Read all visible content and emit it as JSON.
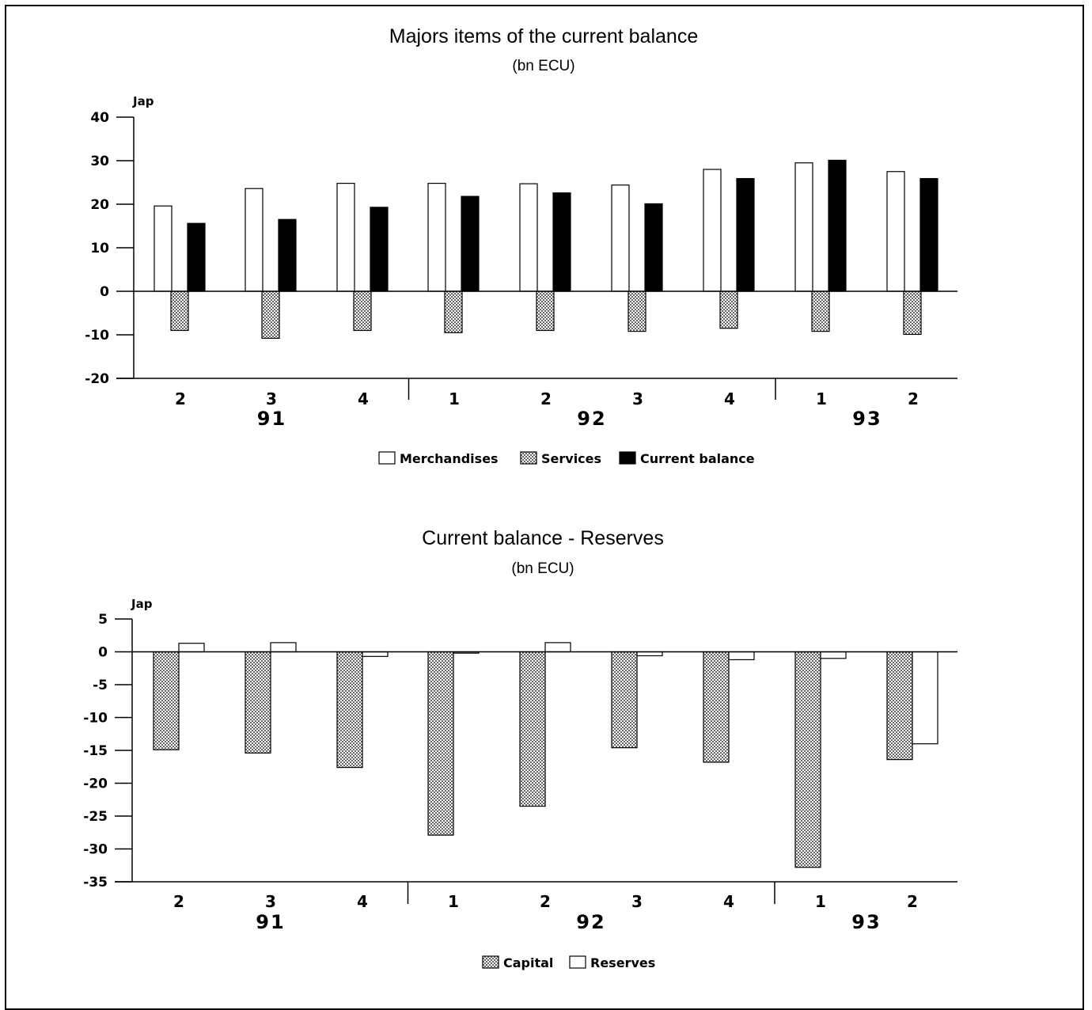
{
  "colors": {
    "ink": "#000000",
    "background": "#ffffff",
    "hatch": "#888888"
  },
  "chart_data": [
    {
      "type": "bar",
      "title": "Majors items of the current balance",
      "subtitle": "(bn ECU)",
      "y_axis_title": "Jap",
      "ylim": [
        -20,
        40
      ],
      "yticks": [
        "40",
        "30",
        "20",
        "10",
        "0",
        "-10",
        "-20"
      ],
      "ytick_values": [
        40,
        30,
        20,
        10,
        0,
        -10,
        -20
      ],
      "categories": [
        "2",
        "3",
        "4",
        "1",
        "2",
        "3",
        "4",
        "1",
        "2"
      ],
      "year_groups": [
        {
          "label": "91",
          "count": 3
        },
        {
          "label": "92",
          "count": 4
        },
        {
          "label": "93",
          "count": 2
        }
      ],
      "series": [
        {
          "name": "Merchandises",
          "style": "white",
          "values": [
            19.6,
            23.6,
            24.8,
            24.8,
            24.7,
            24.4,
            28.0,
            29.5,
            27.5
          ]
        },
        {
          "name": "Services",
          "style": "hatch",
          "values": [
            -9.0,
            -10.8,
            -9.0,
            -9.5,
            -9.0,
            -9.2,
            -8.5,
            -9.2,
            -9.9
          ]
        },
        {
          "name": "Current balance",
          "style": "black",
          "values": [
            15.6,
            16.5,
            19.3,
            21.8,
            22.6,
            20.1,
            25.9,
            30.1,
            25.9
          ]
        }
      ],
      "legend_position": "bottom",
      "grid": false
    },
    {
      "type": "bar",
      "title": "Current balance - Reserves",
      "subtitle": "(bn ECU)",
      "y_axis_title": "Jap",
      "ylim": [
        -35,
        5
      ],
      "yticks": [
        "5",
        "0",
        "-5",
        "-10",
        "-15",
        "-20",
        "-25",
        "-30",
        "-35"
      ],
      "ytick_values": [
        5,
        0,
        -5,
        -10,
        -15,
        -20,
        -25,
        -30,
        -35
      ],
      "categories": [
        "2",
        "3",
        "4",
        "1",
        "2",
        "3",
        "4",
        "1",
        "2"
      ],
      "year_groups": [
        {
          "label": "91",
          "count": 3
        },
        {
          "label": "92",
          "count": 4
        },
        {
          "label": "93",
          "count": 2
        }
      ],
      "series": [
        {
          "name": "Capital",
          "style": "hatch",
          "values": [
            -14.9,
            -15.4,
            -17.6,
            -27.9,
            -23.5,
            -14.6,
            -16.8,
            -32.8,
            -16.4
          ]
        },
        {
          "name": "Reserves",
          "style": "white",
          "values": [
            1.3,
            1.4,
            -0.7,
            -0.2,
            1.4,
            -0.6,
            -1.2,
            -1.0,
            -14.0
          ]
        }
      ],
      "legend_position": "bottom",
      "grid": false
    }
  ]
}
